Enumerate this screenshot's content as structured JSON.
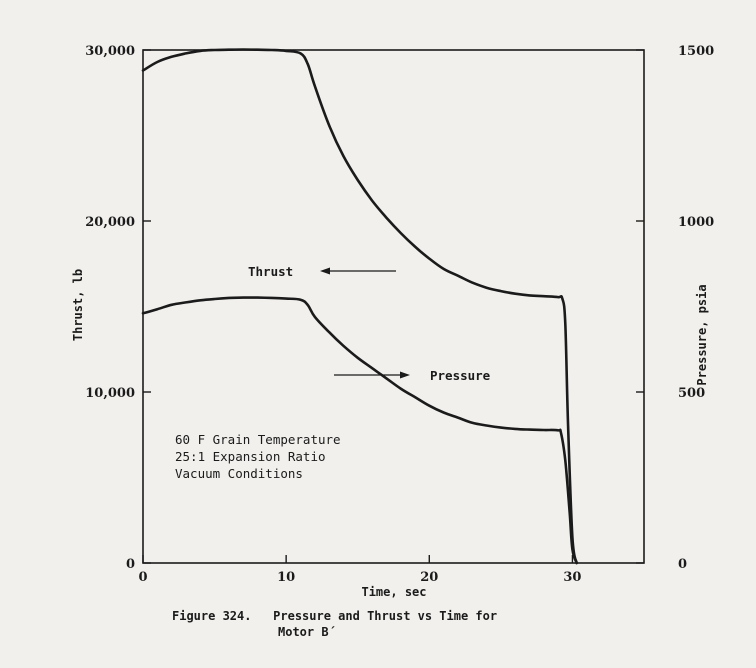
{
  "chart_data": {
    "type": "line",
    "xlabel": "Time, sec",
    "ylabel_left": "Thrust, lb",
    "ylabel_right": "Pressure, psia",
    "xlim": [
      0,
      35
    ],
    "ylim_left": [
      0,
      30000
    ],
    "ylim_right": [
      0,
      1500
    ],
    "x_ticks": [
      "0",
      "10",
      "20",
      "30"
    ],
    "y_ticks_left": [
      "0",
      "10,000",
      "20,000",
      "30,000"
    ],
    "y_ticks_right": [
      "0",
      "500",
      "1000",
      "1500"
    ],
    "grid": false,
    "series": [
      {
        "name": "Thrust",
        "axis": "left",
        "x": [
          0,
          1,
          2,
          3,
          4,
          5,
          6,
          7,
          8,
          9,
          10,
          11,
          11.5,
          12,
          13,
          14,
          15,
          16,
          17,
          18,
          19,
          20,
          21,
          22,
          23,
          24,
          25,
          26,
          27,
          28,
          29,
          29.3,
          29.5,
          29.7,
          30,
          30.3
        ],
        "values": [
          28800,
          29300,
          29600,
          29800,
          29950,
          30000,
          30020,
          30030,
          30020,
          30000,
          29950,
          29800,
          29200,
          27900,
          25600,
          23800,
          22400,
          21200,
          20200,
          19300,
          18500,
          17800,
          17200,
          16800,
          16400,
          16100,
          15900,
          15750,
          15650,
          15600,
          15550,
          15450,
          14000,
          8000,
          1500,
          0
        ]
      },
      {
        "name": "Pressure",
        "axis": "right",
        "x": [
          0,
          1,
          2,
          3,
          4,
          5,
          6,
          7,
          8,
          9,
          10,
          11,
          11.5,
          12,
          13,
          14,
          15,
          16,
          17,
          18,
          19,
          20,
          21,
          22,
          23,
          24,
          25,
          26,
          27,
          28,
          29,
          29.2,
          29.5,
          29.8,
          30,
          30.3
        ],
        "values": [
          730,
          742,
          755,
          762,
          768,
          772,
          775,
          776,
          776,
          775,
          773,
          770,
          755,
          720,
          675,
          635,
          600,
          570,
          540,
          510,
          485,
          460,
          440,
          425,
          410,
          402,
          396,
          392,
          390,
          389,
          388,
          380,
          300,
          150,
          40,
          0
        ]
      }
    ],
    "annotations": {
      "thrust_label": "Thrust",
      "pressure_label": "Pressure",
      "notes": [
        "60 F Grain Temperature",
        "25:1 Expansion Ratio",
        "Vacuum Conditions"
      ]
    },
    "caption": {
      "line1": "Figure 324.   Pressure and Thrust vs Time for",
      "line2": "Motor B´"
    }
  }
}
